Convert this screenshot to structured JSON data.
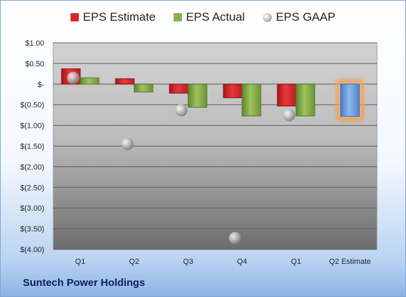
{
  "company": "Suntech Power Holdings",
  "chart_data": {
    "type": "bar",
    "categories": [
      "Q1",
      "Q2",
      "Q3",
      "Q4",
      "Q1",
      "Q2 Estimate"
    ],
    "series": [
      {
        "name": "EPS Estimate",
        "color": "#d9262b",
        "values": [
          0.37,
          0.13,
          -0.22,
          -0.33,
          -0.53,
          null
        ]
      },
      {
        "name": "EPS Actual",
        "color": "#8ab04d",
        "values": [
          0.15,
          -0.19,
          -0.56,
          -0.77,
          -0.77,
          null
        ]
      },
      {
        "name": "EPS GAAP",
        "color": "#a8a8a8",
        "values": [
          0.15,
          -1.45,
          -0.63,
          -3.73,
          -0.75,
          null
        ]
      },
      {
        "name": "Q2 Estimate",
        "color": "#6f9fe0",
        "values": [
          null,
          null,
          null,
          null,
          null,
          -0.78
        ]
      }
    ],
    "legend": [
      "EPS Estimate",
      "EPS Actual",
      "EPS GAAP"
    ],
    "yticks": [
      "$1.00",
      "$0.50",
      "$-",
      "$(0.50)",
      "$(1.00)",
      "$(1.50)",
      "$(2.00)",
      "$(2.50)",
      "$(3.00)",
      "$(3.50)",
      "$(4.00)"
    ],
    "ylim": [
      -4.0,
      1.0
    ],
    "grid": true,
    "legend_position": "top"
  }
}
